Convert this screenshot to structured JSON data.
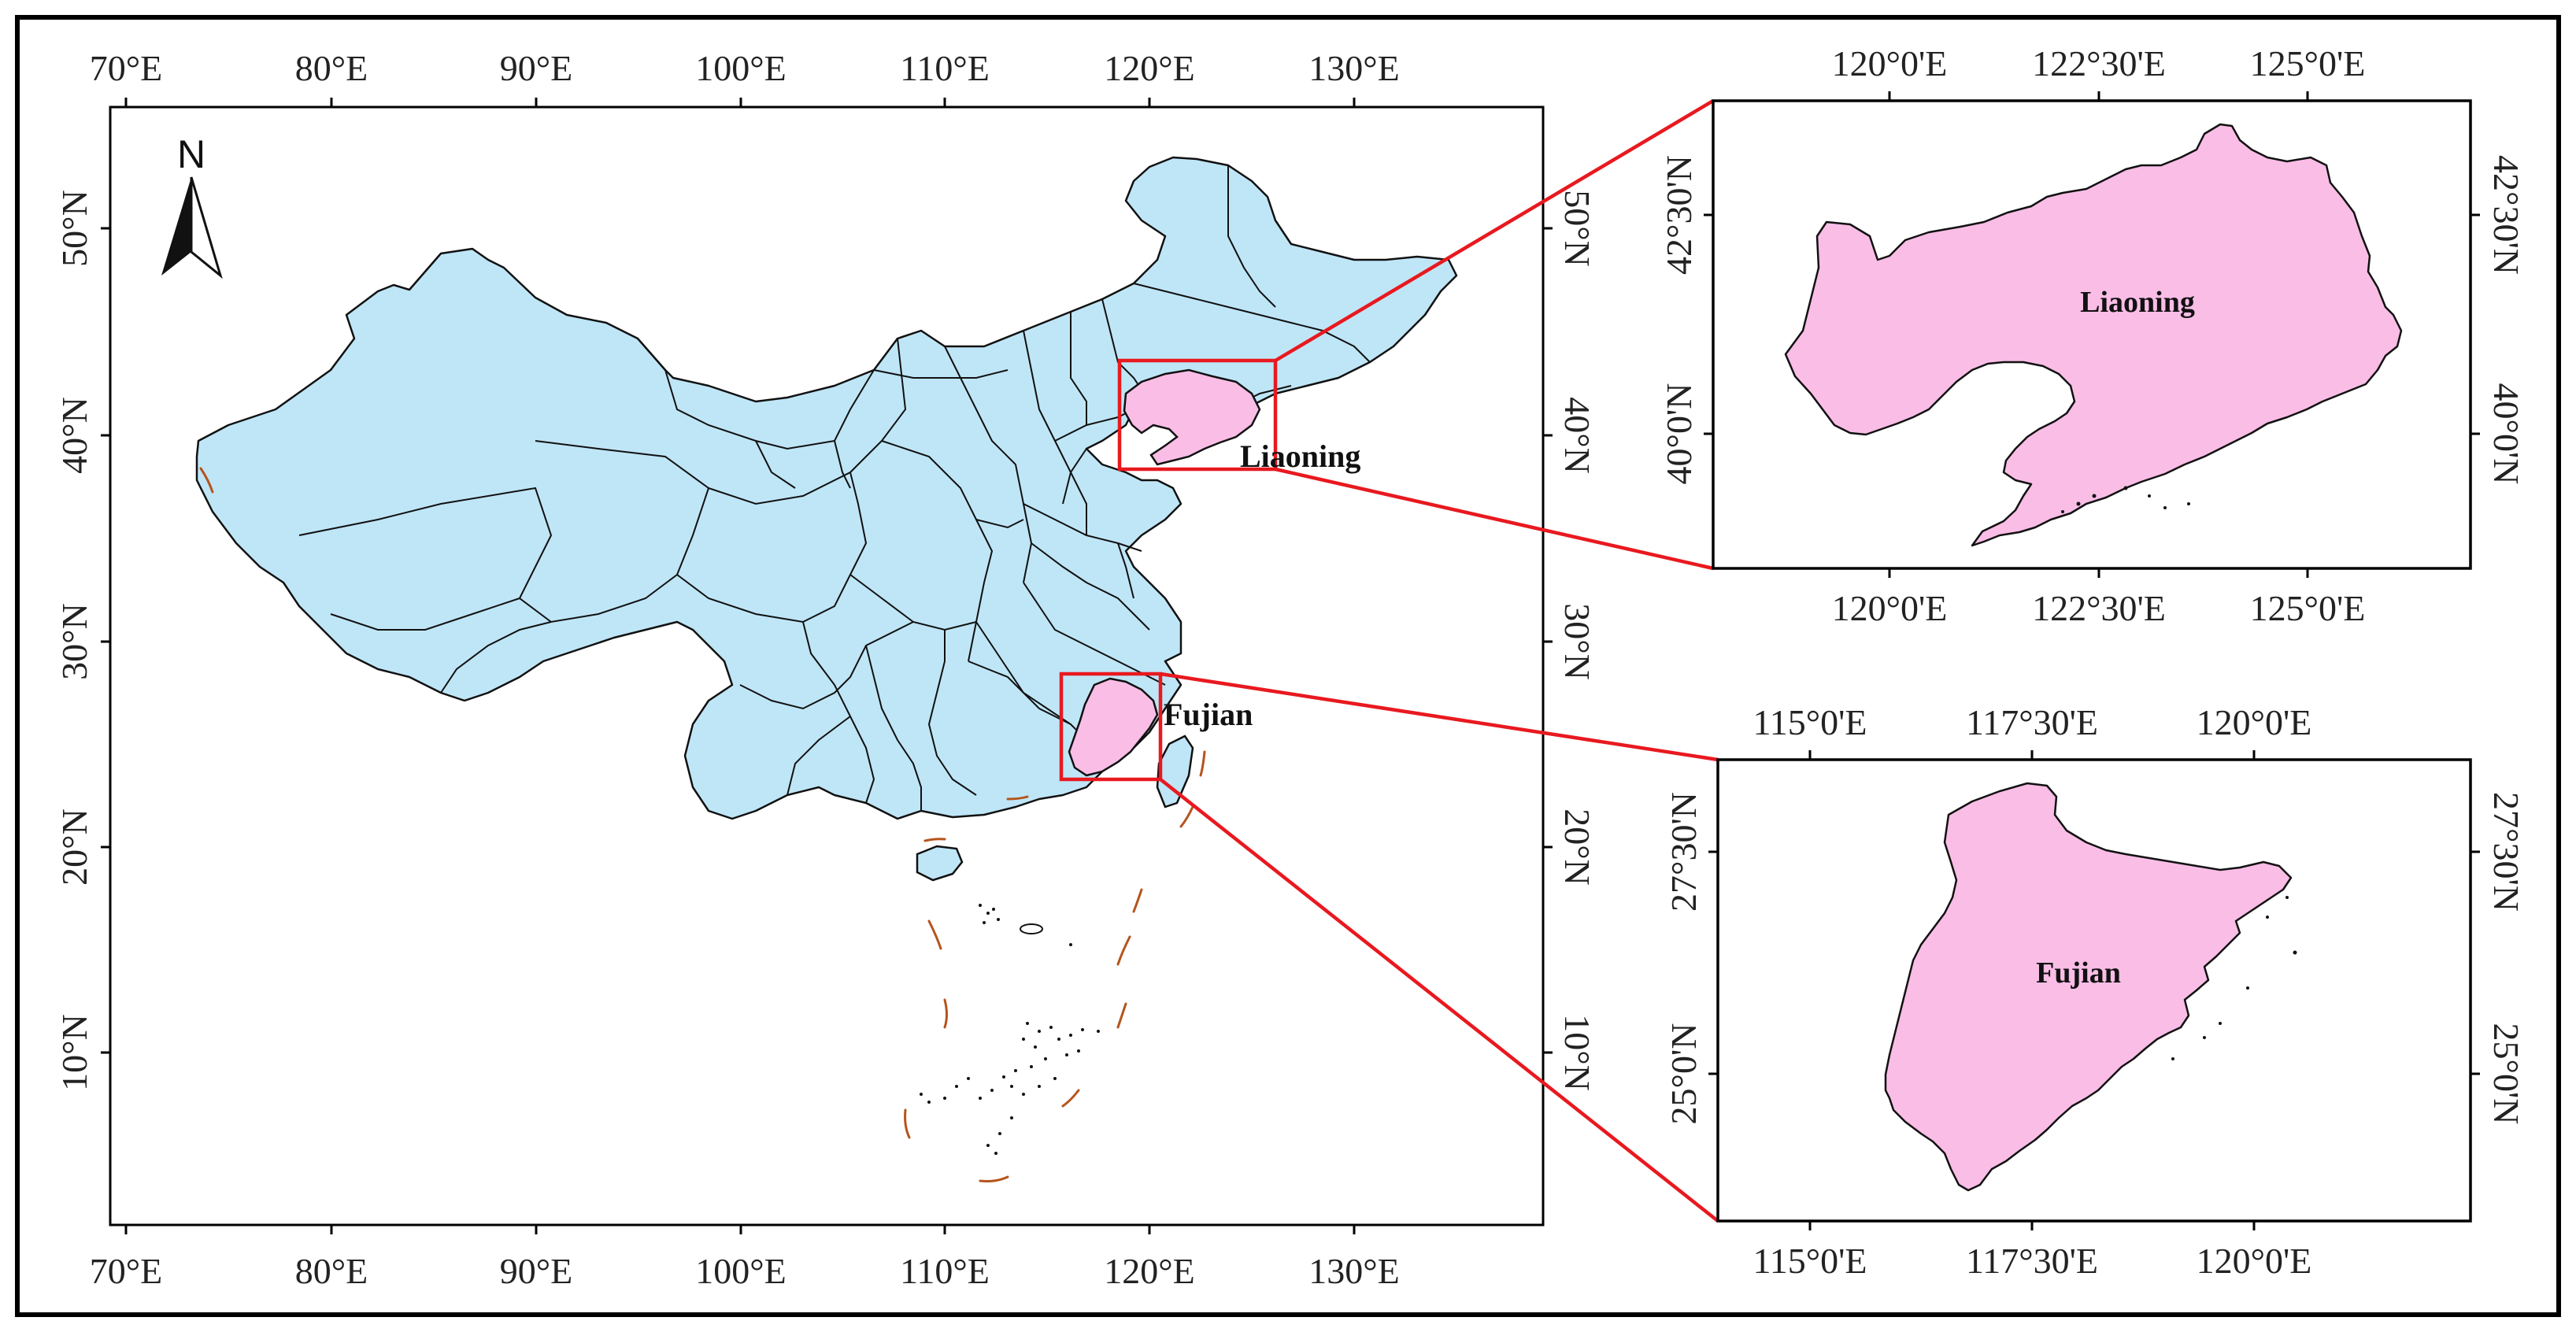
{
  "main_map": {
    "top_ticks": [
      "70°E",
      "80°E",
      "90°E",
      "100°E",
      "110°E",
      "120°E",
      "130°E"
    ],
    "bottom_ticks": [
      "70°E",
      "80°E",
      "90°E",
      "100°E",
      "110°E",
      "120°E",
      "130°E"
    ],
    "left_ticks": [
      "50°N",
      "40°N",
      "30°N",
      "20°N",
      "10°N"
    ],
    "right_ticks": [
      "50°N",
      "40°N",
      "30°N",
      "20°N",
      "10°N"
    ],
    "north_label": "N",
    "highlights": [
      {
        "name": "Liaoning",
        "label": "Liaoning"
      },
      {
        "name": "Fujian",
        "label": "Fujian"
      }
    ]
  },
  "inset_liaoning": {
    "label": "Liaoning",
    "top_ticks": [
      "120°0'E",
      "122°30'E",
      "125°0'E"
    ],
    "bottom_ticks": [
      "120°0'E",
      "122°30'E",
      "125°0'E"
    ],
    "left_ticks": [
      "42°30'N",
      "40°0'N"
    ],
    "right_ticks": [
      "42°30'N",
      "40°0'N"
    ]
  },
  "inset_fujian": {
    "label": "Fujian",
    "top_ticks": [
      "115°0'E",
      "117°30'E",
      "120°0'E"
    ],
    "bottom_ticks": [
      "115°0'E",
      "117°30'E",
      "120°0'E"
    ],
    "left_ticks": [
      "27°30'N",
      "25°0'N"
    ],
    "right_ticks": [
      "27°30'N",
      "25°0'N"
    ]
  },
  "colors": {
    "country_fill": "#bfe6f7",
    "highlight_fill": "#f9bde6",
    "callout": "#e8191f",
    "dashed_line": "#b5541c",
    "frame": "#000000"
  }
}
